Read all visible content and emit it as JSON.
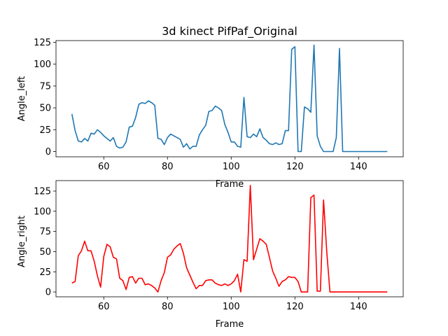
{
  "title": "3d kinect PifPaf_Original",
  "chart_data": [
    {
      "type": "line",
      "xlabel": "Frame",
      "ylabel": "Angle_left",
      "xlim": [
        45,
        154
      ],
      "ylim": [
        -6,
        127
      ],
      "xticks": [
        60,
        80,
        100,
        120,
        140
      ],
      "yticks": [
        0,
        25,
        50,
        75,
        100,
        125
      ],
      "grid": false,
      "series": [
        {
          "color": "#1f77b4",
          "x": [
            50,
            51,
            52,
            53,
            54,
            55,
            56,
            57,
            58,
            59,
            60,
            61,
            62,
            63,
            64,
            65,
            66,
            67,
            68,
            69,
            70,
            71,
            72,
            73,
            74,
            75,
            76,
            77,
            78,
            79,
            80,
            81,
            82,
            83,
            84,
            85,
            86,
            87,
            88,
            89,
            90,
            91,
            92,
            93,
            94,
            95,
            96,
            97,
            98,
            99,
            100,
            101,
            102,
            103,
            104,
            105,
            106,
            107,
            108,
            109,
            110,
            111,
            112,
            113,
            114,
            115,
            116,
            117,
            118,
            119,
            120,
            121,
            122,
            123,
            124,
            125,
            126,
            127,
            128,
            129,
            130,
            131,
            132,
            133,
            134,
            135,
            136,
            137,
            138,
            139,
            140,
            141,
            142,
            143,
            144,
            145,
            146,
            147,
            148,
            149
          ],
          "y": [
            43,
            24,
            12,
            11,
            15,
            12,
            21,
            20,
            25,
            22,
            18,
            15,
            12,
            16,
            6,
            4,
            5,
            11,
            28,
            29,
            39,
            54,
            56,
            55,
            58,
            56,
            53,
            15,
            14,
            8,
            16,
            20,
            18,
            16,
            14,
            5,
            9,
            3,
            6,
            6,
            19,
            25,
            30,
            46,
            47,
            52,
            50,
            47,
            31,
            22,
            11,
            11,
            6,
            5,
            62,
            17,
            16,
            20,
            17,
            26,
            16,
            13,
            9,
            8,
            10,
            8,
            9,
            24,
            24,
            117,
            120,
            0,
            0,
            51,
            49,
            45,
            122,
            18,
            6,
            0,
            0,
            0,
            0,
            16,
            118,
            0,
            0,
            0,
            0,
            0,
            0,
            0,
            0,
            0,
            0,
            0,
            0,
            0,
            0,
            0
          ]
        }
      ]
    },
    {
      "type": "line",
      "xlabel": "Frame",
      "ylabel": "Angle_right",
      "xlim": [
        45,
        154
      ],
      "ylim": [
        -6,
        138
      ],
      "xticks": [
        60,
        80,
        100,
        120,
        140
      ],
      "yticks": [
        0,
        25,
        50,
        75,
        100,
        125
      ],
      "grid": false,
      "series": [
        {
          "color": "#ff0000",
          "x": [
            50,
            51,
            52,
            53,
            54,
            55,
            56,
            57,
            58,
            59,
            60,
            61,
            62,
            63,
            64,
            65,
            66,
            67,
            68,
            69,
            70,
            71,
            72,
            73,
            74,
            75,
            76,
            77,
            78,
            79,
            80,
            81,
            82,
            83,
            84,
            85,
            86,
            87,
            88,
            89,
            90,
            91,
            92,
            93,
            94,
            95,
            96,
            97,
            98,
            99,
            100,
            101,
            102,
            103,
            104,
            105,
            106,
            107,
            108,
            109,
            110,
            111,
            112,
            113,
            114,
            115,
            116,
            117,
            118,
            119,
            120,
            121,
            122,
            123,
            124,
            125,
            126,
            127,
            128,
            129,
            130,
            131,
            132,
            133,
            134,
            135,
            136,
            137,
            138,
            139,
            140,
            141,
            142,
            143,
            144,
            145,
            146,
            147,
            148,
            149
          ],
          "y": [
            11,
            13,
            45,
            51,
            63,
            51,
            51,
            38,
            20,
            6,
            44,
            59,
            56,
            43,
            41,
            17,
            14,
            3,
            18,
            19,
            11,
            17,
            17,
            9,
            10,
            8,
            5,
            0,
            14,
            24,
            43,
            46,
            53,
            57,
            60,
            48,
            30,
            21,
            12,
            4,
            8,
            8,
            14,
            15,
            15,
            11,
            9,
            8,
            10,
            8,
            10,
            14,
            22,
            0,
            40,
            38,
            132,
            40,
            53,
            66,
            63,
            59,
            43,
            26,
            17,
            7,
            13,
            15,
            19,
            18,
            18,
            13,
            0,
            0,
            0,
            117,
            120,
            1,
            1,
            114,
            50,
            0,
            0,
            0,
            0,
            0,
            0,
            0,
            0,
            0,
            0,
            0,
            0,
            0,
            0,
            0,
            0,
            0,
            0,
            0
          ]
        }
      ]
    }
  ]
}
